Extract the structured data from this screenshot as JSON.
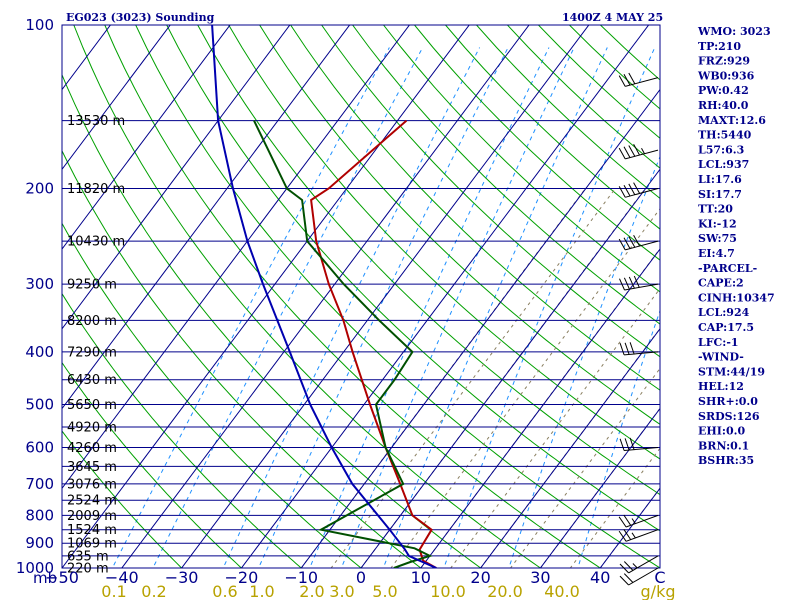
{
  "header": {
    "station_title": "EG023 (3023) Sounding",
    "time_title": "1400Z  4 MAY 25"
  },
  "colors": {
    "temperature": "#b00000",
    "dewpoint": "#005000",
    "parcel": "#0000b0",
    "isobar": "#00008b",
    "isotherm": "#00008b",
    "dry_adiabat": "#00a000",
    "moist_adiabat": "#8a7f60",
    "mixing_ratio": "#1e90ff",
    "wind_barb": "#000000",
    "mixing_label": "#b8a200"
  },
  "stats": [
    "WMO: 3023",
    "TP:210",
    "FRZ:929",
    "WB0:936",
    "PW:0.42",
    "RH:40.0",
    "MAXT:12.6",
    "TH:5440",
    "L57:6.3",
    "LCL:937",
    "LI:17.6",
    "SI:17.7",
    "TT:20",
    "KI:-12",
    "SW:75",
    "EI:4.7",
    "-PARCEL-",
    "CAPE:2",
    "CINH:10347",
    "LCL:924",
    "CAP:17.5",
    "LFC:-1",
    "-WIND-",
    "STM:44/19",
    "HEL:12",
    "SHR+:0.0",
    "SRDS:126",
    "EHI:0.0",
    "BRN:0.1",
    "BSHR:35"
  ],
  "chart_data": {
    "type": "line",
    "title": "EG023 (3023) Sounding",
    "subtitle": "1400Z  4 MAY 25",
    "y_scale": "log-pressure",
    "ylim": [
      1000,
      100
    ],
    "xlim": [
      -50,
      50
    ],
    "y_unit": "mb",
    "pressure_ticks": [
      100,
      200,
      300,
      400,
      500,
      600,
      700,
      800,
      900,
      1000
    ],
    "temperature_ticks": [
      "−50",
      "−40",
      "−30",
      "−20",
      "−10",
      "0",
      "10",
      "20",
      "30",
      "40",
      "C"
    ],
    "mixing_ratio_ticks": [
      "0.1",
      "0.2",
      "0.6",
      "1.0",
      "2.0",
      "3.0",
      "5.0",
      "10.0",
      "20.0",
      "40.0",
      "g/kg"
    ],
    "height_labels": [
      {
        "p": 150,
        "label": "13530 m"
      },
      {
        "p": 200,
        "label": "11820 m"
      },
      {
        "p": 250,
        "label": "10430 m"
      },
      {
        "p": 300,
        "label": "9250 m"
      },
      {
        "p": 350,
        "label": "8200 m"
      },
      {
        "p": 400,
        "label": "7290 m"
      },
      {
        "p": 450,
        "label": "6430 m"
      },
      {
        "p": 500,
        "label": "5650 m"
      },
      {
        "p": 550,
        "label": "4920 m"
      },
      {
        "p": 600,
        "label": "4260 m"
      },
      {
        "p": 650,
        "label": "3645 m"
      },
      {
        "p": 700,
        "label": "3076 m"
      },
      {
        "p": 750,
        "label": "2524 m"
      },
      {
        "p": 800,
        "label": "2009 m"
      },
      {
        "p": 850,
        "label": "1524 m"
      },
      {
        "p": 900,
        "label": "1069 m"
      },
      {
        "p": 950,
        "label": "635 m"
      },
      {
        "p": 1000,
        "label": "220 m"
      }
    ],
    "series": [
      {
        "name": "temperature",
        "points": [
          {
            "p": 1000,
            "t": 12.6
          },
          {
            "p": 970,
            "t": 9.5
          },
          {
            "p": 925,
            "t": 7.5
          },
          {
            "p": 850,
            "t": 7.0
          },
          {
            "p": 800,
            "t": 2.0
          },
          {
            "p": 700,
            "t": -4.0
          },
          {
            "p": 600,
            "t": -11.0
          },
          {
            "p": 500,
            "t": -19.0
          },
          {
            "p": 400,
            "t": -28.5
          },
          {
            "p": 350,
            "t": -34.0
          },
          {
            "p": 300,
            "t": -41.0
          },
          {
            "p": 250,
            "t": -48.5
          },
          {
            "p": 210,
            "t": -54.5
          },
          {
            "p": 200,
            "t": -53.0
          },
          {
            "p": 150,
            "t": -48.5
          }
        ]
      },
      {
        "name": "dewpoint",
        "points": [
          {
            "p": 1000,
            "t": 5.5
          },
          {
            "p": 975,
            "t": 7.5
          },
          {
            "p": 950,
            "t": 10.0
          },
          {
            "p": 920,
            "t": 6.5
          },
          {
            "p": 850,
            "t": -11.5
          },
          {
            "p": 700,
            "t": -3.5
          },
          {
            "p": 600,
            "t": -11.0
          },
          {
            "p": 500,
            "t": -18.0
          },
          {
            "p": 450,
            "t": -18.0
          },
          {
            "p": 400,
            "t": -18.5
          },
          {
            "p": 350,
            "t": -28.0
          },
          {
            "p": 300,
            "t": -38.5
          },
          {
            "p": 250,
            "t": -50.0
          },
          {
            "p": 210,
            "t": -56.0
          },
          {
            "p": 200,
            "t": -60.0
          },
          {
            "p": 150,
            "t": -74.0
          }
        ]
      },
      {
        "name": "parcel",
        "points": [
          {
            "p": 1000,
            "t": 12.6
          },
          {
            "p": 950,
            "t": 6.5
          },
          {
            "p": 924,
            "t": 5.0
          },
          {
            "p": 850,
            "t": 0.0
          },
          {
            "p": 700,
            "t": -12.0
          },
          {
            "p": 600,
            "t": -20.0
          },
          {
            "p": 500,
            "t": -29.0
          },
          {
            "p": 400,
            "t": -39.0
          },
          {
            "p": 300,
            "t": -52.0
          },
          {
            "p": 250,
            "t": -60.0
          },
          {
            "p": 200,
            "t": -69.0
          },
          {
            "p": 150,
            "t": -80.0
          },
          {
            "p": 100,
            "t": -93.0
          }
        ]
      }
    ],
    "wind_barbs": [
      {
        "p": 1000,
        "dir": 240,
        "speed": 20
      },
      {
        "p": 950,
        "dir": 240,
        "speed": 25
      },
      {
        "p": 850,
        "dir": 250,
        "speed": 25
      },
      {
        "p": 800,
        "dir": 250,
        "speed": 25
      },
      {
        "p": 600,
        "dir": 265,
        "speed": 30
      },
      {
        "p": 400,
        "dir": 265,
        "speed": 30
      },
      {
        "p": 300,
        "dir": 260,
        "speed": 40
      },
      {
        "p": 250,
        "dir": 255,
        "speed": 40
      },
      {
        "p": 200,
        "dir": 255,
        "speed": 40
      },
      {
        "p": 170,
        "dir": 255,
        "speed": 45
      },
      {
        "p": 125,
        "dir": 255,
        "speed": 30
      }
    ]
  }
}
